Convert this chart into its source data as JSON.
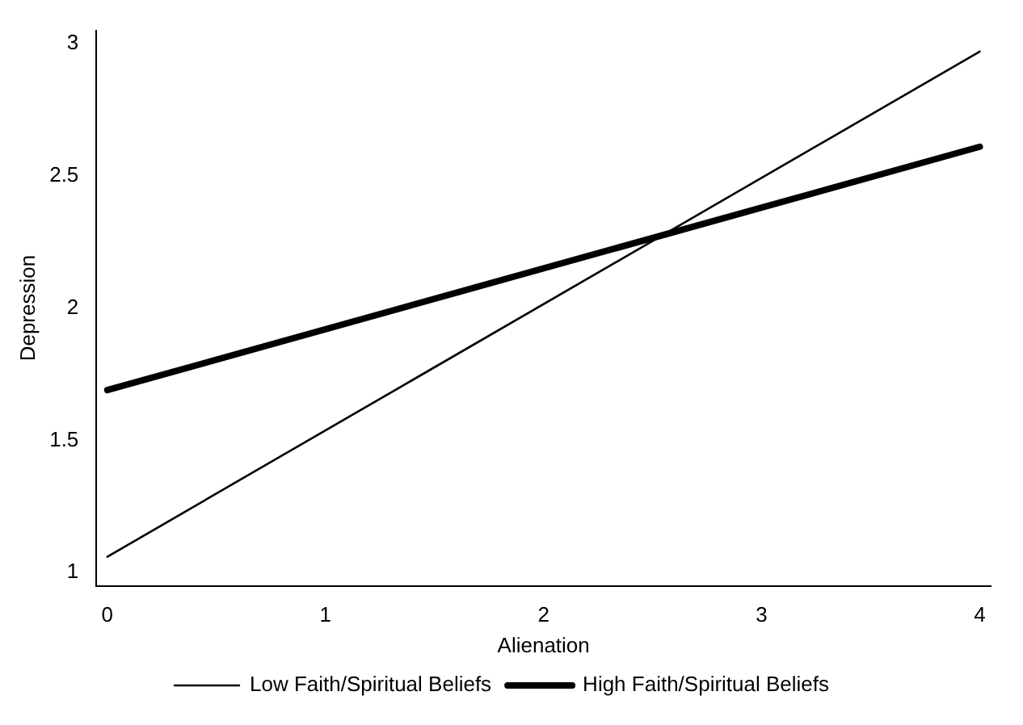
{
  "chart_data": {
    "type": "line",
    "xlabel": "Alienation",
    "ylabel": "Depression",
    "x": [
      0,
      4
    ],
    "series": [
      {
        "name": "Low Faith/Spiritual Beliefs",
        "color": "#000000",
        "values": [
          1.06,
          2.97
        ]
      },
      {
        "name": "High Faith/Spiritual Beliefs",
        "color": "#000000",
        "values": [
          1.69,
          2.61
        ]
      }
    ],
    "xlim": [
      -0.05,
      4.05
    ],
    "xticks": [
      0,
      1,
      2,
      3,
      4
    ],
    "ylim": [
      0.95,
      3.05
    ],
    "yticks": [
      1,
      1.5,
      2,
      2.5,
      3
    ],
    "grid": false,
    "legend": "bottom",
    "marker": "none",
    "line_style": "solid"
  }
}
